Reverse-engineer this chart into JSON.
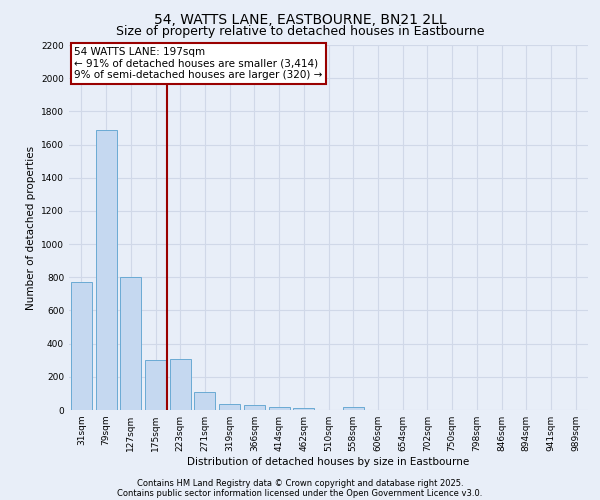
{
  "title": "54, WATTS LANE, EASTBOURNE, BN21 2LL",
  "subtitle": "Size of property relative to detached houses in Eastbourne",
  "xlabel": "Distribution of detached houses by size in Eastbourne",
  "ylabel": "Number of detached properties",
  "categories": [
    "31sqm",
    "79sqm",
    "127sqm",
    "175sqm",
    "223sqm",
    "271sqm",
    "319sqm",
    "366sqm",
    "414sqm",
    "462sqm",
    "510sqm",
    "558sqm",
    "606sqm",
    "654sqm",
    "702sqm",
    "750sqm",
    "798sqm",
    "846sqm",
    "894sqm",
    "941sqm",
    "989sqm"
  ],
  "values": [
    770,
    1690,
    800,
    300,
    305,
    110,
    35,
    30,
    20,
    15,
    0,
    20,
    0,
    0,
    0,
    0,
    0,
    0,
    0,
    0,
    0
  ],
  "bar_color": "#c5d8f0",
  "bar_edge_color": "#6aaad4",
  "vline_color": "#990000",
  "vline_pos": 3.46,
  "annotation_text": "54 WATTS LANE: 197sqm\n← 91% of detached houses are smaller (3,414)\n9% of semi-detached houses are larger (320) →",
  "annotation_box_color": "#ffffff",
  "annotation_box_edge": "#990000",
  "ylim": [
    0,
    2200
  ],
  "yticks": [
    0,
    200,
    400,
    600,
    800,
    1000,
    1200,
    1400,
    1600,
    1800,
    2000,
    2200
  ],
  "bg_color": "#e8eef8",
  "grid_color": "#d0d8e8",
  "footer1": "Contains HM Land Registry data © Crown copyright and database right 2025.",
  "footer2": "Contains public sector information licensed under the Open Government Licence v3.0.",
  "title_fontsize": 10,
  "subtitle_fontsize": 9,
  "label_fontsize": 7.5,
  "tick_fontsize": 6.5,
  "footer_fontsize": 6
}
